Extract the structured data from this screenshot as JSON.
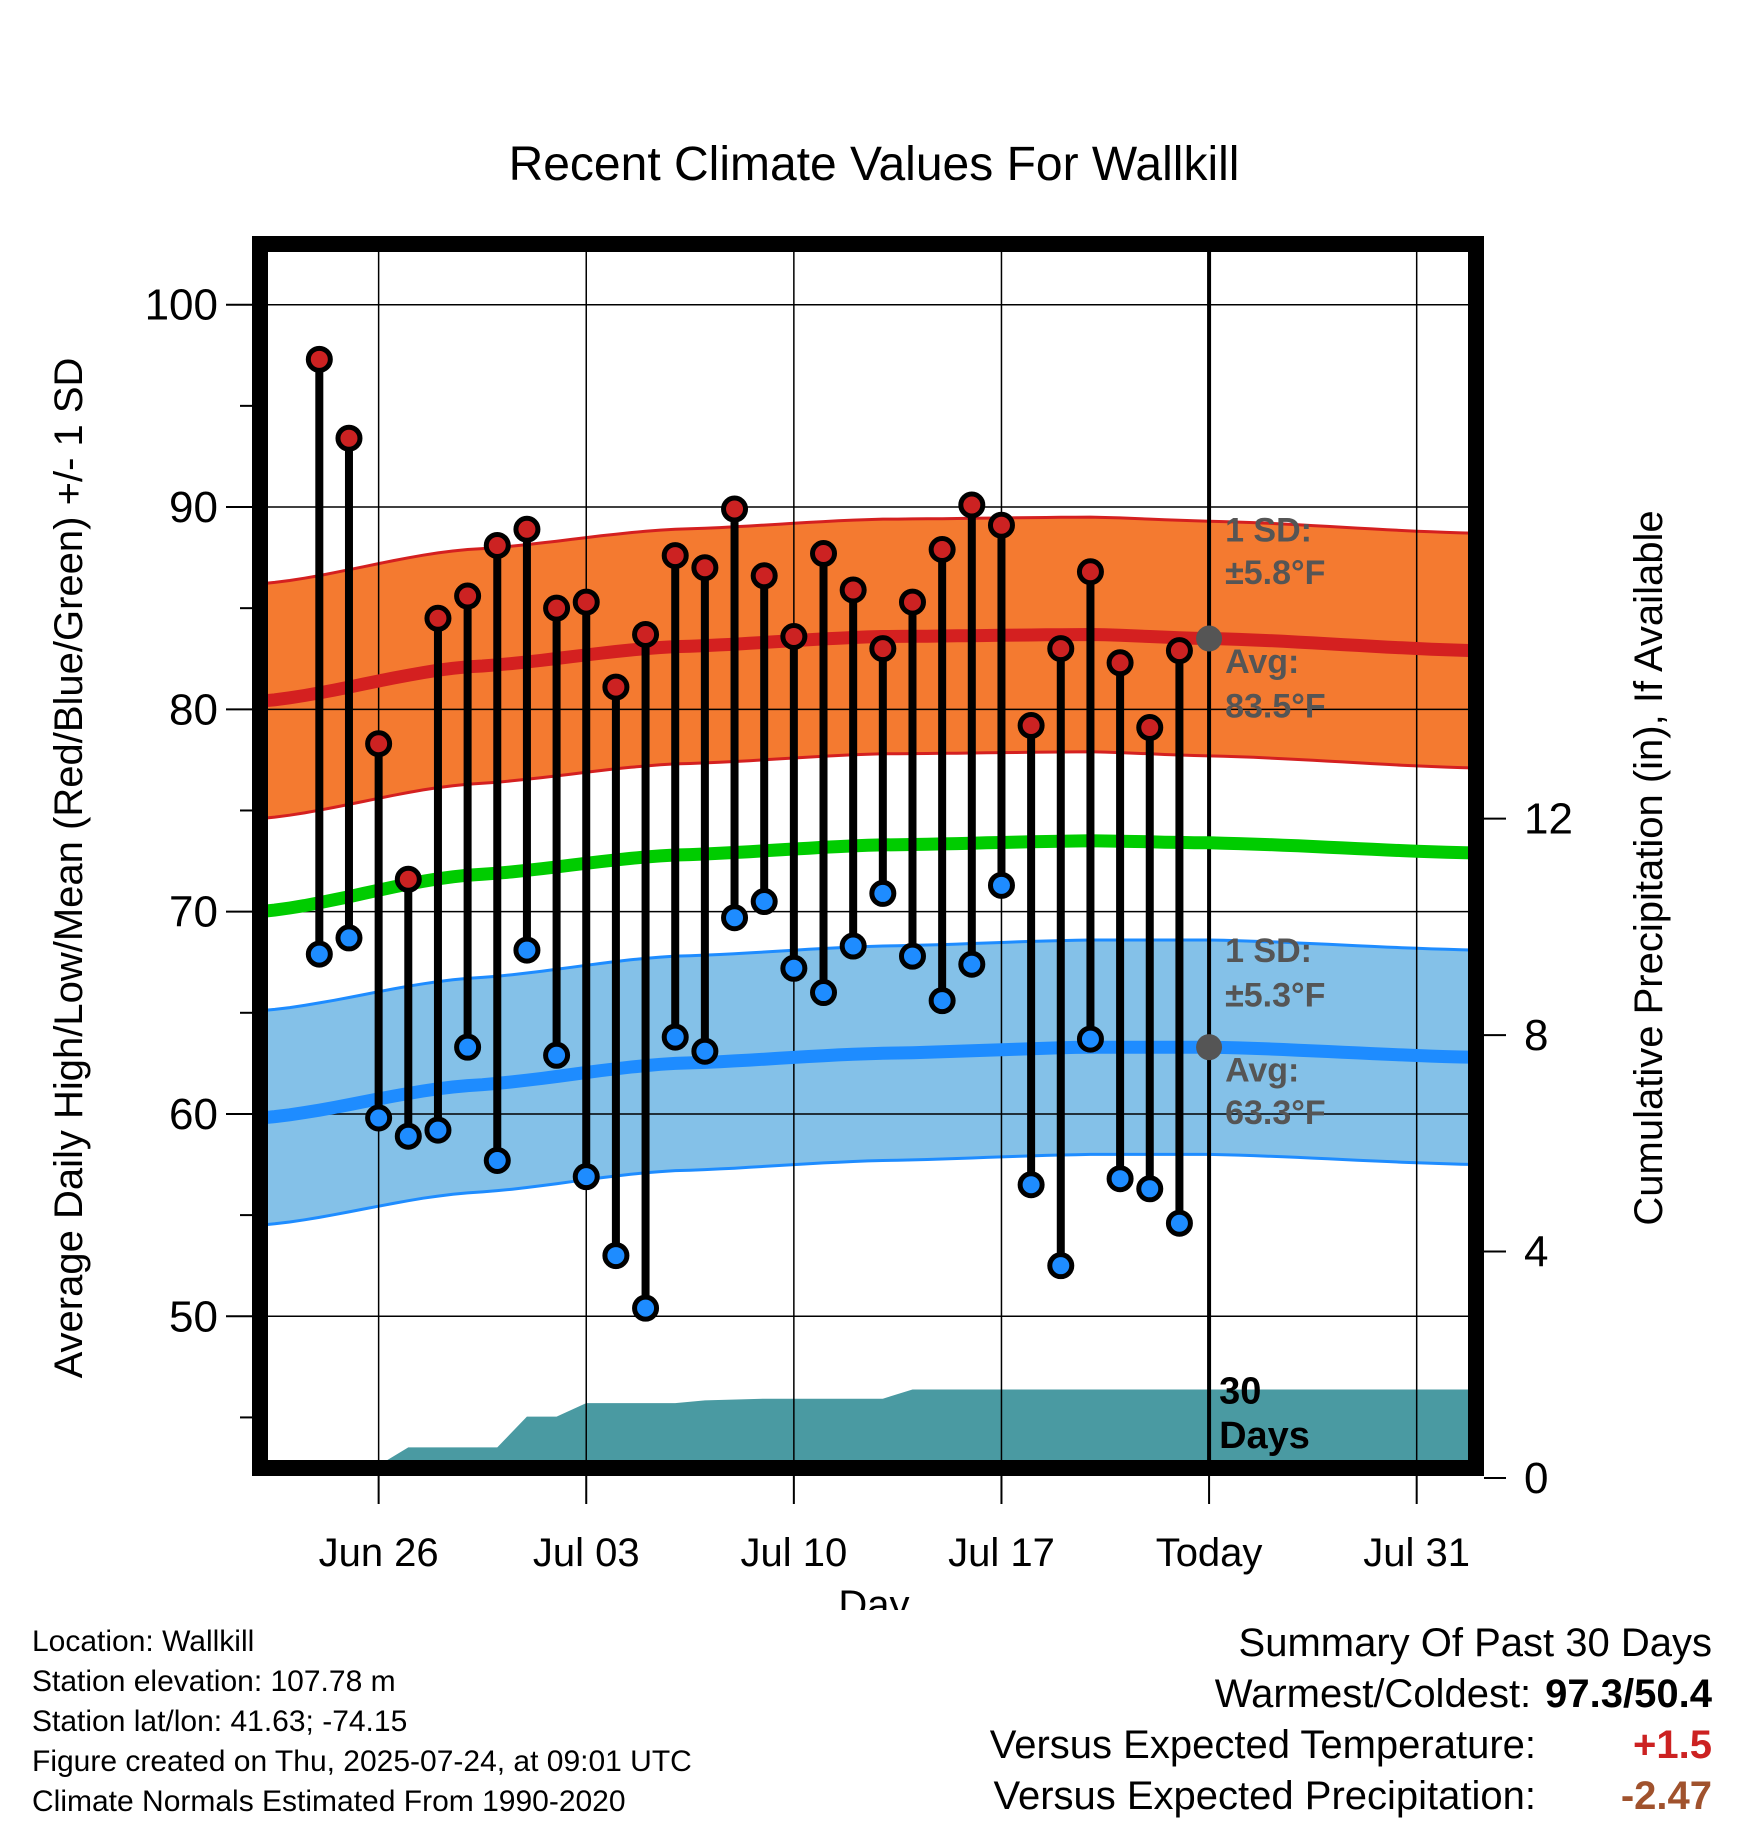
{
  "chart_data": {
    "type": "line",
    "title": "Recent Climate Values For Wallkill",
    "xlabel": "Day",
    "ylabel": "Average Daily High/Low/Mean (Red/Blue/Green) +/- 1 SD",
    "y2label": "Cumulative Precipitation (in), If Available",
    "ylim": [
      42.5,
      103
    ],
    "y2lim": [
      0,
      22.62
    ],
    "xlim": [
      "2025-06-22",
      "2025-08-02"
    ],
    "x_ticks": [
      "Jun 26",
      "Jul 03",
      "Jul 10",
      "Jul 17",
      "Today",
      "Jul 31"
    ],
    "x_tick_dates": [
      "2025-06-26",
      "2025-07-03",
      "2025-07-10",
      "2025-07-17",
      "2025-07-24",
      "2025-07-31"
    ],
    "y_ticks": [
      50,
      60,
      70,
      80,
      90,
      100
    ],
    "y2_ticks": [
      0,
      4,
      8,
      12
    ],
    "grid": true,
    "today": "2025-07-24",
    "period_label": [
      "30",
      "Days"
    ],
    "dates": [
      "2025-06-24",
      "2025-06-25",
      "2025-06-26",
      "2025-06-27",
      "2025-06-28",
      "2025-06-29",
      "2025-06-30",
      "2025-07-01",
      "2025-07-02",
      "2025-07-03",
      "2025-07-04",
      "2025-07-05",
      "2025-07-06",
      "2025-07-07",
      "2025-07-08",
      "2025-07-09",
      "2025-07-10",
      "2025-07-11",
      "2025-07-12",
      "2025-07-13",
      "2025-07-14",
      "2025-07-15",
      "2025-07-16",
      "2025-07-17",
      "2025-07-18",
      "2025-07-19",
      "2025-07-20",
      "2025-07-21",
      "2025-07-22",
      "2025-07-23"
    ],
    "highs": [
      97.3,
      93.4,
      78.3,
      71.6,
      84.5,
      85.6,
      88.1,
      88.9,
      85.0,
      85.3,
      81.1,
      83.7,
      87.6,
      87.0,
      89.9,
      86.6,
      83.6,
      87.7,
      85.9,
      83.0,
      85.3,
      87.9,
      90.1,
      89.1,
      79.2,
      83.0,
      86.8,
      82.3,
      79.1,
      82.9
    ],
    "lows": [
      67.9,
      68.7,
      59.8,
      58.9,
      59.2,
      63.3,
      57.7,
      68.1,
      62.9,
      56.9,
      53.0,
      50.4,
      63.8,
      63.1,
      69.7,
      70.5,
      67.2,
      66.0,
      68.3,
      70.9,
      67.8,
      65.6,
      67.4,
      71.3,
      56.5,
      52.5,
      63.7,
      56.8,
      56.3,
      54.6
    ],
    "series": [
      {
        "name": "Avg High",
        "color": "#d42020",
        "x": [
          "2025-06-22",
          "2025-06-29",
          "2025-07-06",
          "2025-07-13",
          "2025-07-20",
          "2025-07-24",
          "2025-08-02"
        ],
        "values": [
          80.4,
          82.1,
          83.1,
          83.6,
          83.7,
          83.5,
          82.9
        ]
      },
      {
        "name": "Avg Mean",
        "color": "#00cc00",
        "x": [
          "2025-06-22",
          "2025-06-29",
          "2025-07-06",
          "2025-07-13",
          "2025-07-20",
          "2025-07-24",
          "2025-08-02"
        ],
        "values": [
          70.0,
          71.8,
          72.8,
          73.3,
          73.5,
          73.4,
          72.9
        ]
      },
      {
        "name": "Avg Low",
        "color": "#1e8cff",
        "x": [
          "2025-06-22",
          "2025-06-29",
          "2025-07-06",
          "2025-07-13",
          "2025-07-20",
          "2025-07-24",
          "2025-08-02"
        ],
        "values": [
          59.8,
          61.4,
          62.5,
          63.0,
          63.3,
          63.3,
          62.8
        ]
      }
    ],
    "sd_high": 5.8,
    "sd_low": 5.3,
    "bands": [
      {
        "color": "#f47a30",
        "edge": "#d42020",
        "center_series": 0,
        "sd": 5.8
      },
      {
        "color": "#84c1e8",
        "edge": "#1e8cff",
        "center_series": 2,
        "sd": 5.3
      }
    ],
    "precip": {
      "color": "#4a9aa2",
      "x": [
        "2025-06-22",
        "2025-06-25",
        "2025-06-26",
        "2025-06-27",
        "2025-06-30",
        "2025-07-01",
        "2025-07-02",
        "2025-07-03",
        "2025-07-04",
        "2025-07-06",
        "2025-07-07",
        "2025-07-09",
        "2025-07-13",
        "2025-07-14",
        "2025-08-02"
      ],
      "values": [
        0,
        0,
        0.05,
        0.38,
        0.38,
        0.95,
        0.95,
        1.2,
        1.2,
        1.2,
        1.25,
        1.28,
        1.28,
        1.45,
        1.45
      ]
    },
    "annotations": {
      "high_sd_title": "1 SD:",
      "high_sd_value": "±5.8°F",
      "high_avg_title": "Avg:",
      "high_avg_value": "83.5°F",
      "low_sd_title": "1 SD:",
      "low_sd_value": "±5.3°F",
      "low_avg_title": "Avg:",
      "low_avg_value": "63.3°F"
    }
  },
  "colors": {
    "high_marker": "#cc2222",
    "low_marker": "#1e8cff",
    "avg_marker": "#555555"
  },
  "footer": {
    "location": "Location: Wallkill",
    "elevation": "Station elevation: 107.78 m",
    "latlon": "Station lat/lon: 41.63; -74.15",
    "created": "Figure created on Thu, 2025-07-24, at 09:01 UTC",
    "normals": "Climate Normals Estimated From 1990-2020"
  },
  "summary": {
    "title": "Summary Of Past 30 Days",
    "warm_cold_label": "Warmest/Coldest:",
    "warm_cold_value": "97.3/50.4",
    "temp_label": "Versus Expected Temperature:",
    "temp_value": "+1.5",
    "temp_color": "#cc2222",
    "precip_label": "Versus Expected Precipitation:",
    "precip_value": "-2.47",
    "precip_color": "#a0522d"
  }
}
